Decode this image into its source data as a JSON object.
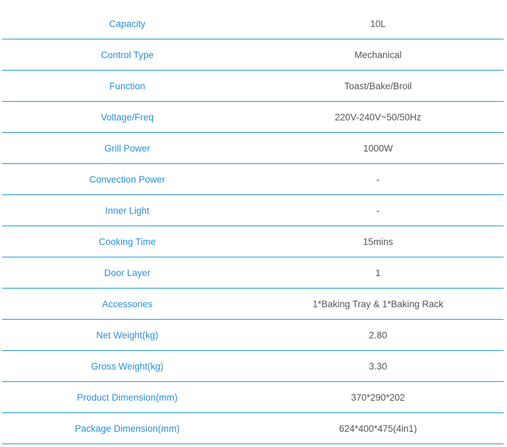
{
  "rows": [
    {
      "label": "Capacity",
      "value": "10L"
    },
    {
      "label": "Control Type",
      "value": "Mechanical"
    },
    {
      "label": "Function",
      "value": "Toast/Bake/Broil"
    },
    {
      "label": "Voltage/Freq",
      "value": "220V-240V~50/50Hz"
    },
    {
      "label": "Grill Power",
      "value": "1000W"
    },
    {
      "label": "Convection Power",
      "value": "-"
    },
    {
      "label": "Inner Light",
      "value": "-"
    },
    {
      "label": "Cooking Time",
      "value": "15mins"
    },
    {
      "label": "Door Layer",
      "value": "1"
    },
    {
      "label": "Accessories",
      "value": "1*Baking Tray & 1*Baking Rack"
    },
    {
      "label": "Net Weight(kg)",
      "value": "2.80"
    },
    {
      "label": "Gross Weight(kg)",
      "value": "3.30"
    },
    {
      "label": "Product Dimension(mm)",
      "value": "370*290*202"
    },
    {
      "label": "Package Dimension(mm)",
      "value": "624*400*475(4in1)"
    }
  ]
}
